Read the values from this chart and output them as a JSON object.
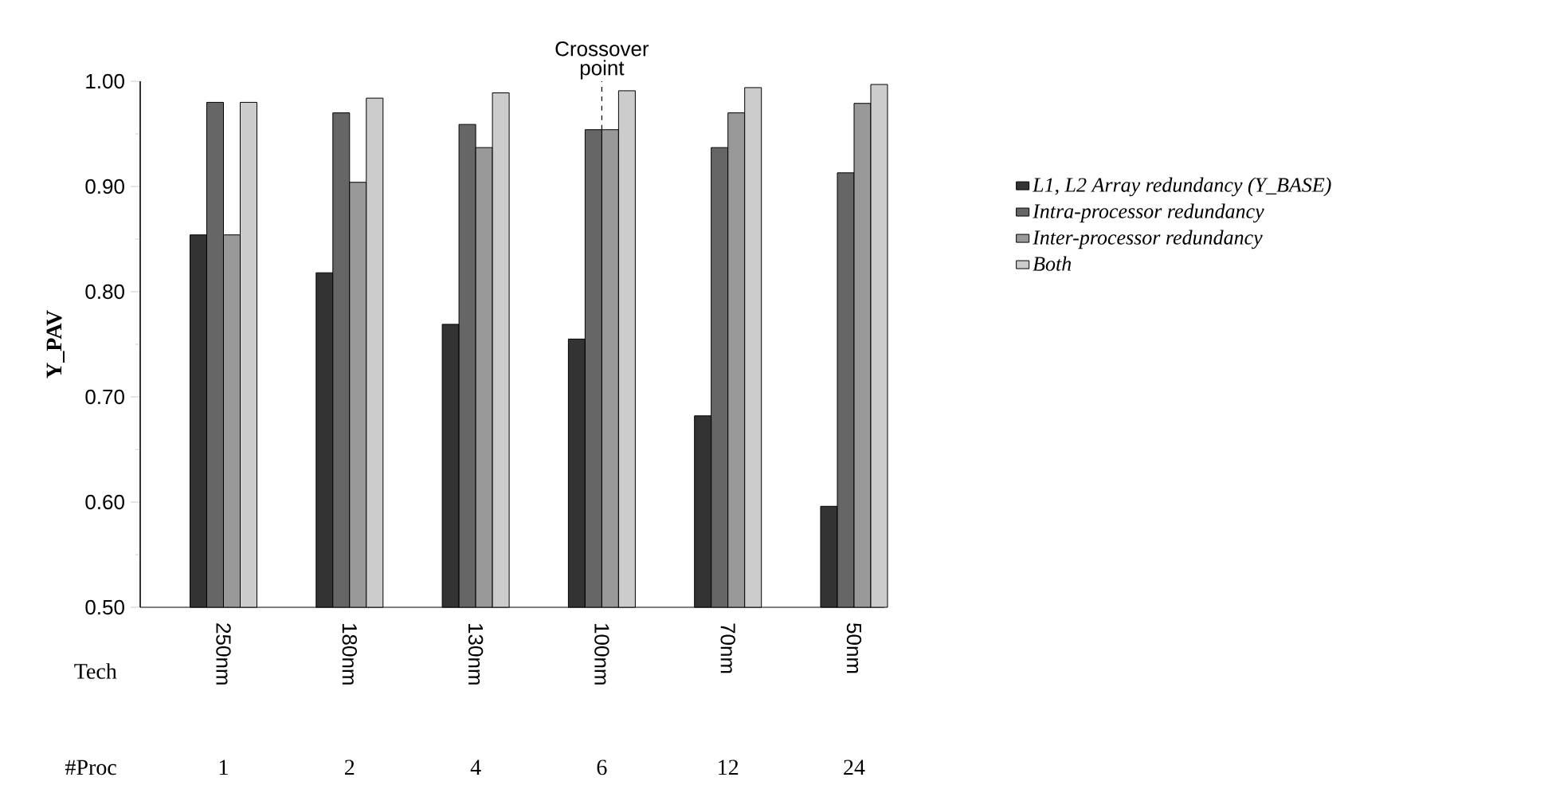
{
  "chart_data": {
    "type": "bar",
    "ylabel": "Y_PAV",
    "xlabel": "Tech",
    "categories": [
      "250nm",
      "180nm",
      "130nm",
      "100nm",
      "70nm",
      "50nm"
    ],
    "series": [
      {
        "name": "L1, L2 Array redundancy (Y_BASE)",
        "color": "#333333",
        "values": [
          0.854,
          0.818,
          0.769,
          0.755,
          0.682,
          0.596
        ]
      },
      {
        "name": "Intra-processor redundancy",
        "color": "#666666",
        "values": [
          0.98,
          0.97,
          0.959,
          0.954,
          0.937,
          0.913
        ]
      },
      {
        "name": "Inter-processor redundancy",
        "color": "#999999",
        "values": [
          0.854,
          0.904,
          0.937,
          0.954,
          0.97,
          0.979
        ]
      },
      {
        "name": "Both",
        "color": "#cccccc",
        "values": [
          0.98,
          0.984,
          0.989,
          0.991,
          0.994,
          0.997
        ]
      }
    ],
    "ylim": [
      0.5,
      1.0
    ],
    "yticks": [
      {
        "value": 0.5,
        "label": "0.50"
      },
      {
        "value": 0.55,
        "label": null
      },
      {
        "value": 0.6,
        "label": "0.60"
      },
      {
        "value": 0.65,
        "label": null
      },
      {
        "value": 0.7,
        "label": "0.70"
      },
      {
        "value": 0.75,
        "label": null
      },
      {
        "value": 0.8,
        "label": "0.80"
      },
      {
        "value": 0.85,
        "label": null
      },
      {
        "value": 0.9,
        "label": "0.90"
      },
      {
        "value": 0.95,
        "label": null
      },
      {
        "value": 1.0,
        "label": "1.00"
      }
    ],
    "annotations": [
      {
        "text": "Crossover point",
        "x": "100nm",
        "y": 0.954
      },
      "#Proc",
      "1",
      "2",
      "4",
      "6",
      "12",
      "24"
    ],
    "legend": "right",
    "grid": false
  }
}
